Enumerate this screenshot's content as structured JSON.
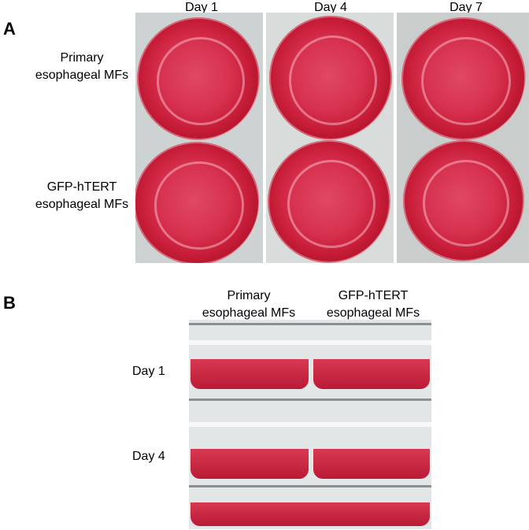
{
  "panel_a": {
    "letter": "A",
    "columns": [
      "Day 1",
      "Day 4",
      "Day 7"
    ],
    "rows": [
      {
        "line1": "Primary",
        "line2": "esophageal MFs"
      },
      {
        "line1": "GFP-hTERT",
        "line2": "esophageal MFs"
      }
    ]
  },
  "panel_b": {
    "letter": "B",
    "columns": [
      {
        "line1": "Primary",
        "line2": "esophageal MFs"
      },
      {
        "line1": "GFP-hTERT",
        "line2": "esophageal MFs"
      }
    ],
    "rows": [
      "Day 1",
      "Day 4"
    ]
  },
  "colors": {
    "medium_red": "#d73250",
    "plate_plastic": "#cdd3d3"
  }
}
